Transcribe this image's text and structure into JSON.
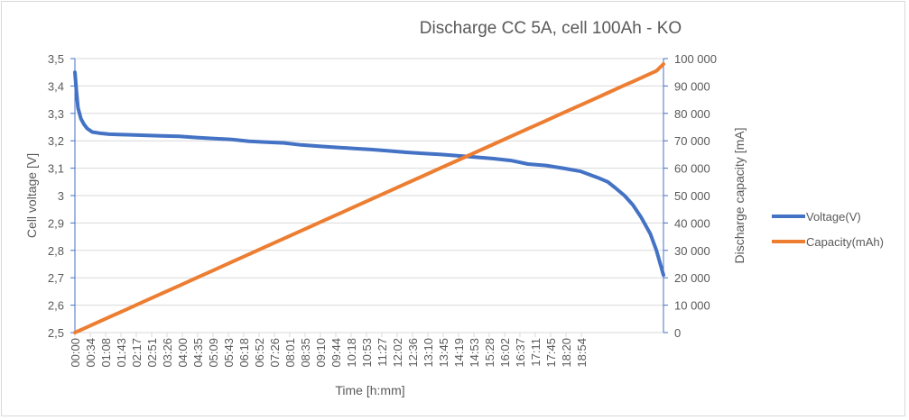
{
  "chart_data": {
    "type": "line",
    "title": "Discharge CC 5A, cell 100Ah - KO",
    "xlabel": "Time  [h:mm]",
    "ylabel": "Cell voltage [V]",
    "y2label": "Discharge capacity [mA]",
    "ylim": [
      2.5,
      3.5
    ],
    "y2lim": [
      0,
      100000
    ],
    "grid": true,
    "legend_position": "right",
    "x_tick_labels": [
      "00:00",
      "00:34",
      "01:08",
      "01:43",
      "02:17",
      "02:51",
      "03:26",
      "04:00",
      "04:35",
      "05:09",
      "05:43",
      "06:18",
      "06:52",
      "07:26",
      "08:01",
      "08:35",
      "09:10",
      "09:44",
      "10:18",
      "10:53",
      "11:27",
      "12:02",
      "12:36",
      "13:10",
      "13:45",
      "14:19",
      "14:53",
      "15:28",
      "16:02",
      "16:37",
      "17:11",
      "17:45",
      "18:20",
      "18:54"
    ],
    "y_tick_labels": [
      "2,5",
      "2,6",
      "2,7",
      "2,8",
      "2,9",
      "3",
      "3,1",
      "3,2",
      "3,3",
      "3,4",
      "3,5"
    ],
    "y2_tick_labels": [
      "0",
      "10 000",
      "20 000",
      "30 000",
      "40 000",
      "50 000",
      "60 000",
      "70 000",
      "80 000",
      "90 000",
      "100 000"
    ],
    "x_hours": [
      0,
      0.05,
      0.1,
      0.2,
      0.3,
      0.4,
      0.57,
      0.8,
      1.13,
      1.72,
      2.28,
      2.85,
      3.43,
      4.0,
      4.58,
      5.15,
      5.72,
      6.3,
      6.87,
      7.43,
      8.02,
      8.58,
      9.17,
      9.73,
      10.3,
      10.88,
      11.45,
      12.03,
      12.6,
      13.17,
      13.75,
      14.32,
      14.88,
      15.47,
      16.03,
      16.62,
      17.18,
      17.5,
      17.75,
      18.05,
      18.33,
      18.6,
      18.9,
      19.1,
      19.33
    ],
    "series": [
      {
        "name": "Voltage(V)",
        "axis": "left",
        "color": "#4472c4",
        "values": [
          3.45,
          3.38,
          3.32,
          3.28,
          3.26,
          3.245,
          3.232,
          3.228,
          3.224,
          3.222,
          3.22,
          3.218,
          3.216,
          3.212,
          3.208,
          3.205,
          3.198,
          3.195,
          3.192,
          3.185,
          3.18,
          3.176,
          3.172,
          3.168,
          3.163,
          3.158,
          3.154,
          3.15,
          3.145,
          3.14,
          3.135,
          3.128,
          3.115,
          3.11,
          3.1,
          3.088,
          3.065,
          3.05,
          3.028,
          3.0,
          2.965,
          2.92,
          2.86,
          2.8,
          2.71
        ]
      },
      {
        "name": "Capacity(mAh)",
        "axis": "right",
        "color": "#ed7d31",
        "values": [
          0,
          250,
          500,
          1000,
          1500,
          2000,
          2850,
          4000,
          5650,
          8600,
          11400,
          14250,
          17150,
          20000,
          22900,
          25750,
          28600,
          31500,
          34350,
          37150,
          40100,
          42900,
          45850,
          48650,
          51500,
          54400,
          57250,
          60150,
          63000,
          65850,
          68750,
          71600,
          74400,
          77350,
          80150,
          83100,
          85900,
          87500,
          88750,
          90250,
          91650,
          93000,
          94500,
          95500,
          98000
        ]
      }
    ]
  }
}
